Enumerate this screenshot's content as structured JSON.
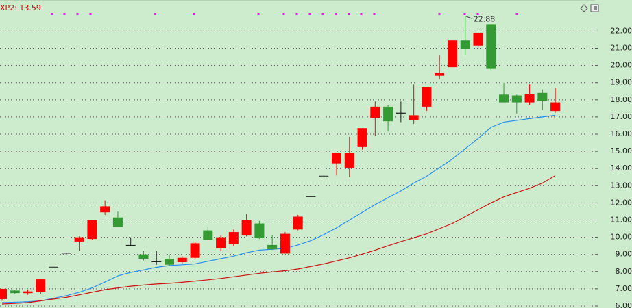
{
  "chart_data": {
    "type": "candlestick",
    "legend_text": "XP2: 13.59",
    "up_color": "#ff0000",
    "down_color": "#349a34",
    "doji_color": "#222222",
    "open": [
      6.4,
      6.9,
      6.75,
      6.8,
      8.25,
      9.05,
      9.75,
      9.9,
      11.45,
      11.15,
      9.55,
      9.0,
      8.55,
      8.75,
      8.55,
      8.8,
      10.4,
      9.35,
      9.6,
      10.1,
      10.8,
      9.55,
      9.05,
      10.45,
      12.35,
      13.56,
      14.3,
      14.05,
      15.25,
      16.95,
      17.6,
      17.2,
      16.8,
      17.6,
      19.4,
      19.9,
      21.45,
      21.15,
      22.4,
      18.3,
      18.25,
      17.85,
      18.4,
      17.35
    ],
    "high": [
      7.0,
      6.95,
      6.95,
      7.55,
      8.28,
      9.1,
      10.05,
      11.0,
      12.15,
      11.5,
      10.0,
      9.2,
      9.2,
      9.0,
      8.9,
      9.7,
      10.6,
      10.1,
      10.45,
      11.35,
      10.95,
      10.1,
      10.3,
      11.3,
      12.38,
      13.58,
      14.9,
      15.85,
      16.35,
      17.9,
      17.7,
      17.9,
      18.9,
      18.75,
      20.6,
      21.45,
      22.88,
      22.0,
      22.4,
      19.0,
      18.3,
      18.9,
      18.6,
      18.7
    ],
    "low": [
      6.3,
      6.7,
      6.65,
      6.7,
      8.25,
      8.95,
      9.2,
      9.85,
      11.3,
      10.6,
      9.5,
      8.65,
      8.4,
      8.35,
      8.45,
      8.75,
      9.85,
      9.2,
      9.5,
      10.05,
      9.9,
      9.25,
      9.05,
      10.4,
      12.35,
      13.56,
      13.6,
      13.5,
      15.1,
      15.9,
      16.15,
      16.7,
      16.6,
      17.35,
      19.2,
      19.9,
      20.6,
      20.95,
      19.7,
      17.85,
      17.2,
      17.7,
      17.4,
      17.25
    ],
    "close": [
      7.0,
      6.75,
      6.85,
      7.55,
      8.28,
      9.1,
      10.0,
      11.0,
      11.8,
      10.6,
      9.5,
      8.75,
      8.6,
      8.4,
      8.8,
      9.65,
      9.85,
      10.0,
      10.3,
      11.0,
      9.95,
      9.3,
      10.2,
      11.2,
      12.38,
      13.58,
      14.9,
      14.9,
      16.35,
      17.6,
      16.75,
      17.25,
      17.1,
      18.75,
      19.55,
      21.45,
      20.95,
      21.9,
      19.8,
      17.85,
      17.85,
      18.35,
      17.95,
      17.85
    ],
    "lines": [
      {
        "color": "#2a8ff0",
        "values": [
          6.2,
          6.22,
          6.25,
          6.3,
          6.45,
          6.6,
          6.8,
          7.05,
          7.4,
          7.75,
          7.95,
          8.1,
          8.25,
          8.35,
          8.4,
          8.45,
          8.6,
          8.75,
          8.9,
          9.1,
          9.25,
          9.3,
          9.35,
          9.55,
          9.8,
          10.15,
          10.55,
          11.0,
          11.45,
          11.9,
          12.3,
          12.7,
          13.15,
          13.55,
          14.05,
          14.55,
          15.15,
          15.75,
          16.4,
          16.7,
          16.8,
          16.9,
          17.0,
          17.1
        ]
      },
      {
        "color": "#d01010",
        "values": [
          6.12,
          6.15,
          6.2,
          6.3,
          6.4,
          6.5,
          6.65,
          6.8,
          6.95,
          7.05,
          7.15,
          7.22,
          7.28,
          7.32,
          7.38,
          7.45,
          7.52,
          7.6,
          7.7,
          7.8,
          7.9,
          7.98,
          8.05,
          8.15,
          8.3,
          8.45,
          8.62,
          8.8,
          9.02,
          9.25,
          9.5,
          9.75,
          9.97,
          10.2,
          10.5,
          10.8,
          11.2,
          11.6,
          12.0,
          12.35,
          12.6,
          12.85,
          13.15,
          13.59
        ]
      }
    ],
    "ylim": [
      5.88,
      23.81
    ],
    "yticks": [
      {
        "value": 6,
        "label": "6.00"
      },
      {
        "value": 7,
        "label": "7.00"
      },
      {
        "value": 8,
        "label": "8.00"
      },
      {
        "value": 9,
        "label": "9.00"
      },
      {
        "value": 10,
        "label": "10.00"
      },
      {
        "value": 11,
        "label": "11.00"
      },
      {
        "value": 12,
        "label": "12.00"
      },
      {
        "value": 13,
        "label": "13.00"
      },
      {
        "value": 14,
        "label": "14.00"
      },
      {
        "value": 15,
        "label": "15.00"
      },
      {
        "value": 16,
        "label": "16.00"
      },
      {
        "value": 17,
        "label": "17.00"
      },
      {
        "value": 18,
        "label": "18.00"
      },
      {
        "value": 19,
        "label": "19.00"
      },
      {
        "value": 20,
        "label": "20.00"
      },
      {
        "value": 21,
        "label": "21.00"
      },
      {
        "value": 22,
        "label": "22.00"
      }
    ],
    "grid": true
  }
}
